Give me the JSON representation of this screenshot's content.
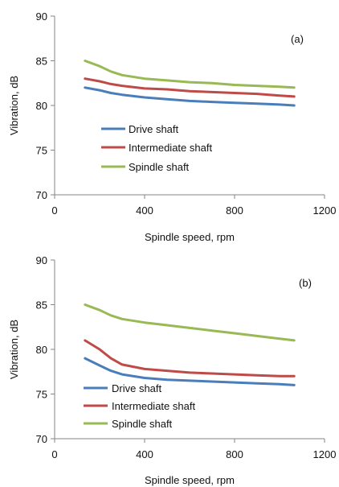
{
  "chart_data": [
    {
      "type": "line",
      "panel_label": "(a)",
      "xlabel": "Spindle speed, rpm",
      "ylabel": "Vibration, dB",
      "xlim": [
        0,
        1200
      ],
      "ylim": [
        70,
        90
      ],
      "xticks": [
        0,
        400,
        800,
        1200
      ],
      "yticks": [
        70,
        75,
        80,
        85,
        90
      ],
      "grid": false,
      "legend_position": "left",
      "series": [
        {
          "name": "Drive shaft",
          "color": "#4a7ebb",
          "x": [
            135,
            200,
            250,
            300,
            400,
            500,
            600,
            700,
            800,
            900,
            1000,
            1065
          ],
          "y": [
            82.0,
            81.7,
            81.4,
            81.2,
            80.9,
            80.7,
            80.5,
            80.4,
            80.3,
            80.2,
            80.1,
            80.0
          ]
        },
        {
          "name": "Intermediate shaft",
          "color": "#be4b48",
          "x": [
            135,
            200,
            250,
            300,
            400,
            500,
            600,
            700,
            800,
            900,
            1000,
            1065
          ],
          "y": [
            83.0,
            82.7,
            82.4,
            82.2,
            81.9,
            81.8,
            81.6,
            81.5,
            81.4,
            81.3,
            81.1,
            81.0
          ]
        },
        {
          "name": "Spindle shaft",
          "color": "#98b954",
          "x": [
            135,
            200,
            250,
            300,
            400,
            500,
            600,
            700,
            800,
            900,
            1000,
            1065
          ],
          "y": [
            85.0,
            84.4,
            83.8,
            83.4,
            83.0,
            82.8,
            82.6,
            82.5,
            82.3,
            82.2,
            82.1,
            82.0
          ]
        }
      ]
    },
    {
      "type": "line",
      "panel_label": "(b)",
      "xlabel": "Spindle speed, rpm",
      "ylabel": "Vibration, dB",
      "xlim": [
        0,
        1200
      ],
      "ylim": [
        70,
        90
      ],
      "xticks": [
        0,
        400,
        800,
        1200
      ],
      "yticks": [
        70,
        75,
        80,
        85,
        90
      ],
      "grid": false,
      "legend_position": "bottom-left",
      "series": [
        {
          "name": "Drive shaft",
          "color": "#4a7ebb",
          "x": [
            135,
            200,
            250,
            300,
            400,
            500,
            600,
            700,
            800,
            900,
            1000,
            1065
          ],
          "y": [
            79.0,
            78.2,
            77.6,
            77.2,
            76.8,
            76.6,
            76.5,
            76.4,
            76.3,
            76.2,
            76.1,
            76.0
          ]
        },
        {
          "name": "Intermediate shaft",
          "color": "#be4b48",
          "x": [
            135,
            200,
            250,
            300,
            400,
            500,
            600,
            700,
            800,
            900,
            1000,
            1065
          ],
          "y": [
            81.0,
            80.0,
            79.0,
            78.3,
            77.8,
            77.6,
            77.4,
            77.3,
            77.2,
            77.1,
            77.0,
            77.0
          ]
        },
        {
          "name": "Spindle shaft",
          "color": "#98b954",
          "x": [
            135,
            200,
            250,
            300,
            400,
            500,
            600,
            700,
            800,
            900,
            1000,
            1065
          ],
          "y": [
            85.0,
            84.4,
            83.8,
            83.4,
            83.0,
            82.7,
            82.4,
            82.1,
            81.8,
            81.5,
            81.2,
            81.0
          ]
        }
      ]
    }
  ]
}
